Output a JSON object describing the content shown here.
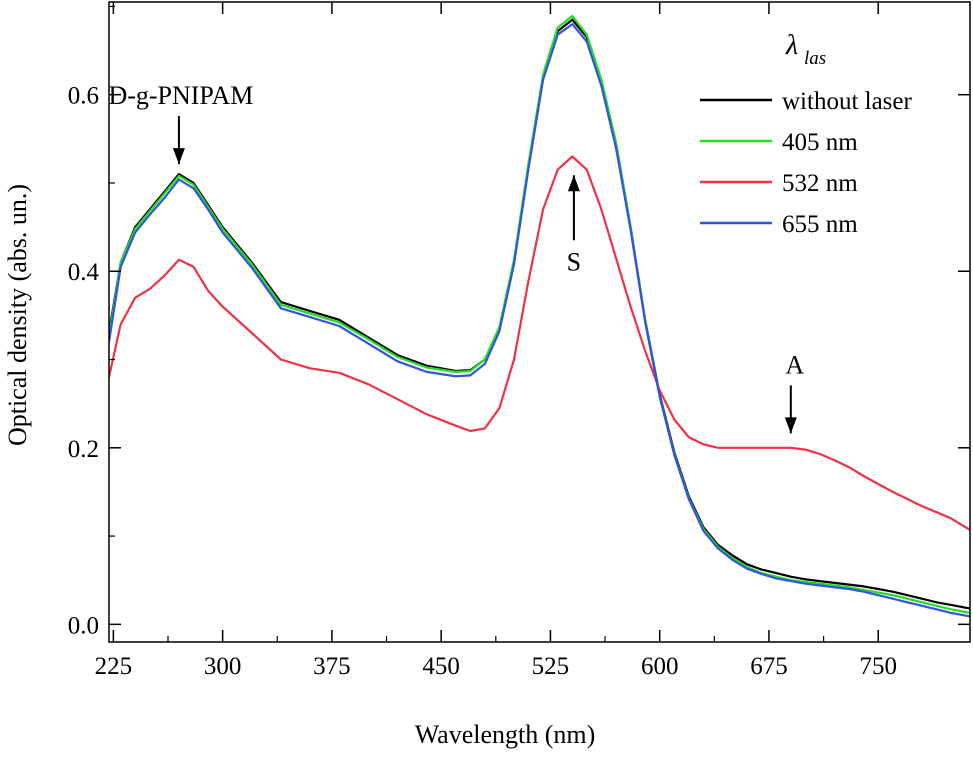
{
  "chart_data": {
    "type": "line",
    "xlabel": "Wavelength (nm)",
    "ylabel": "Optical density (abs. un.)",
    "xlim": [
      222,
      813
    ],
    "ylim": [
      -0.02,
      0.705
    ],
    "x_ticks": [
      225,
      300,
      375,
      450,
      525,
      600,
      675,
      750
    ],
    "x_tick_labels": [
      "225",
      "300",
      "375",
      "450",
      "525",
      "600",
      "675",
      "750"
    ],
    "y_ticks": [
      0.0,
      0.2,
      0.4,
      0.6
    ],
    "y_tick_labels": [
      "0.0",
      "0.2",
      "0.4",
      "0.6"
    ],
    "grid": false,
    "legend": {
      "position": "top-right",
      "title_main": "λ",
      "title_sub": "las"
    },
    "annotations": [
      {
        "text": "D-g-PNIPAM",
        "x": 270,
        "y": 0.51,
        "arrow": "down"
      },
      {
        "text": "S",
        "x": 537,
        "y": 0.52,
        "arrow": "up"
      },
      {
        "text": "A",
        "x": 690,
        "y": 0.205,
        "arrow": "down"
      }
    ],
    "x": [
      222,
      230,
      240,
      250,
      260,
      270,
      280,
      290,
      300,
      320,
      340,
      360,
      380,
      400,
      420,
      440,
      460,
      470,
      480,
      490,
      500,
      510,
      520,
      530,
      540,
      550,
      560,
      570,
      580,
      590,
      600,
      610,
      620,
      630,
      640,
      650,
      660,
      670,
      680,
      690,
      700,
      710,
      720,
      730,
      740,
      750,
      760,
      770,
      780,
      790,
      800,
      813
    ],
    "series": [
      {
        "name": "without laser",
        "color": "#000000",
        "values": [
          0.33,
          0.41,
          0.45,
          0.47,
          0.49,
          0.51,
          0.5,
          0.475,
          0.45,
          0.41,
          0.365,
          0.355,
          0.345,
          0.325,
          0.305,
          0.293,
          0.287,
          0.288,
          0.3,
          0.335,
          0.41,
          0.52,
          0.62,
          0.672,
          0.685,
          0.665,
          0.615,
          0.545,
          0.45,
          0.345,
          0.26,
          0.195,
          0.145,
          0.11,
          0.09,
          0.078,
          0.068,
          0.062,
          0.058,
          0.054,
          0.051,
          0.049,
          0.047,
          0.045,
          0.043,
          0.04,
          0.037,
          0.033,
          0.029,
          0.025,
          0.022,
          0.018
        ]
      },
      {
        "name": "405 nm",
        "color": "#22dd22",
        "values": [
          0.325,
          0.41,
          0.448,
          0.468,
          0.488,
          0.508,
          0.498,
          0.473,
          0.448,
          0.408,
          0.362,
          0.352,
          0.342,
          0.323,
          0.303,
          0.291,
          0.286,
          0.287,
          0.3,
          0.337,
          0.413,
          0.523,
          0.623,
          0.676,
          0.689,
          0.668,
          0.617,
          0.546,
          0.45,
          0.344,
          0.258,
          0.193,
          0.143,
          0.108,
          0.088,
          0.075,
          0.065,
          0.058,
          0.054,
          0.05,
          0.048,
          0.046,
          0.044,
          0.042,
          0.039,
          0.036,
          0.033,
          0.029,
          0.025,
          0.021,
          0.017,
          0.013
        ]
      },
      {
        "name": "532 nm",
        "color": "#ee3344",
        "values": [
          0.28,
          0.34,
          0.37,
          0.38,
          0.395,
          0.413,
          0.405,
          0.378,
          0.36,
          0.33,
          0.3,
          0.29,
          0.285,
          0.272,
          0.255,
          0.238,
          0.225,
          0.219,
          0.222,
          0.245,
          0.3,
          0.39,
          0.47,
          0.515,
          0.53,
          0.515,
          0.47,
          0.415,
          0.36,
          0.31,
          0.265,
          0.232,
          0.212,
          0.204,
          0.2,
          0.2,
          0.2,
          0.2,
          0.2,
          0.2,
          0.198,
          0.193,
          0.186,
          0.178,
          0.168,
          0.159,
          0.15,
          0.142,
          0.134,
          0.127,
          0.12,
          0.107
        ]
      },
      {
        "name": "655 nm",
        "color": "#3355dd",
        "values": [
          0.32,
          0.405,
          0.444,
          0.464,
          0.483,
          0.504,
          0.494,
          0.47,
          0.444,
          0.404,
          0.358,
          0.348,
          0.338,
          0.318,
          0.298,
          0.286,
          0.281,
          0.282,
          0.295,
          0.332,
          0.408,
          0.517,
          0.617,
          0.668,
          0.68,
          0.66,
          0.61,
          0.54,
          0.447,
          0.343,
          0.258,
          0.192,
          0.142,
          0.106,
          0.086,
          0.073,
          0.063,
          0.057,
          0.052,
          0.049,
          0.046,
          0.044,
          0.042,
          0.04,
          0.037,
          0.033,
          0.029,
          0.025,
          0.021,
          0.017,
          0.013,
          0.009
        ]
      }
    ]
  }
}
